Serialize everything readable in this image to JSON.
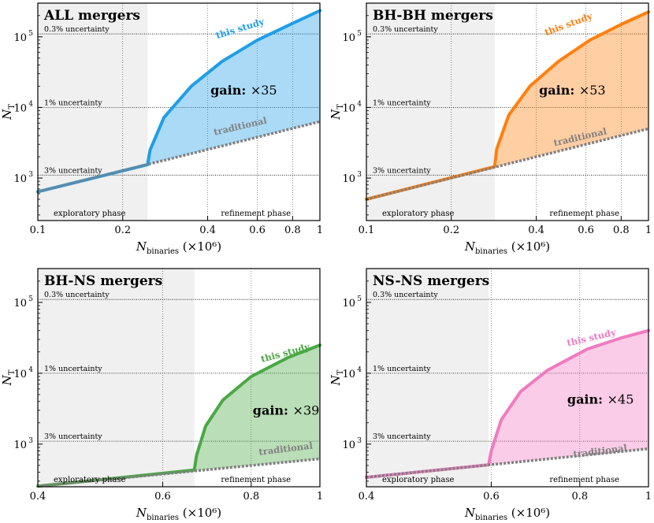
{
  "figure": {
    "xlabel_main": "N",
    "xlabel_sub": "binaries",
    "xlabel_suffix": "(×10⁶)",
    "ylabel_main": "N",
    "ylabel_sub": "T",
    "uncertainty_labels": [
      "0.3% uncertainty",
      "1%   uncertainty",
      "3%   uncertainty"
    ],
    "phase_labels": {
      "exploratory": "exploratory phase",
      "refinement": "refinement phase"
    },
    "curve_labels": {
      "study": "this study",
      "traditional": "traditional"
    },
    "gain_prefix": "gain:"
  },
  "colors": {
    "all": "#1f9ee8",
    "bhbh": "#ff7f0e",
    "bhns": "#4aa844",
    "nsns": "#f17ac0",
    "traditional": "#808080",
    "exploratory_bg": "#f0f0f0"
  },
  "chart_data": [
    {
      "type": "line",
      "title": "ALL mergers",
      "xscale": "log",
      "yscale": "log",
      "xlim": [
        0.1,
        1.0
      ],
      "ylim": [
        250,
        300000
      ],
      "xticks": [
        0.1,
        0.2,
        0.4,
        0.6,
        0.8,
        1.0
      ],
      "xticklabels": [
        "0.1",
        "0.2",
        "0.4",
        "0.6",
        "0.8",
        "1"
      ],
      "yticks": [
        1000,
        10000,
        100000
      ],
      "yticklabels": [
        "10",
        "10",
        "10"
      ],
      "ytickexps": [
        "3",
        "4",
        "5"
      ],
      "uncertainty_levels": [
        110000,
        10000,
        1100
      ],
      "exploratory_end": 0.245,
      "traditional": {
        "x": [
          0.1,
          1.0
        ],
        "y": [
          640,
          6300
        ]
      },
      "study": {
        "x": [
          0.1,
          0.245,
          0.25,
          0.28,
          0.35,
          0.45,
          0.6,
          0.8,
          1.0
        ],
        "y": [
          640,
          1550,
          2500,
          7200,
          20000,
          45000,
          90000,
          155000,
          235000
        ]
      },
      "gain": "×35",
      "color_key": "all"
    },
    {
      "type": "line",
      "title": "BH-BH mergers",
      "xscale": "log",
      "yscale": "log",
      "xlim": [
        0.1,
        1.0
      ],
      "ylim": [
        250,
        300000
      ],
      "xticks": [
        0.1,
        0.2,
        0.4,
        0.6,
        0.8,
        1.0
      ],
      "xticklabels": [
        "0.1",
        "0.2",
        "0.4",
        "0.6",
        "0.8",
        "1"
      ],
      "yticks": [
        1000,
        10000,
        100000
      ],
      "yticklabels": [
        "10",
        "10",
        "10"
      ],
      "ytickexps": [
        "3",
        "4",
        "5"
      ],
      "uncertainty_levels": [
        110000,
        10000,
        1100
      ],
      "exploratory_end": 0.285,
      "traditional": {
        "x": [
          0.1,
          1.0
        ],
        "y": [
          500,
          5000
        ]
      },
      "study": {
        "x": [
          0.1,
          0.285,
          0.29,
          0.32,
          0.38,
          0.48,
          0.62,
          0.8,
          1.0
        ],
        "y": [
          500,
          1450,
          2600,
          7800,
          20000,
          45000,
          90000,
          150000,
          225000
        ]
      },
      "gain": "×53",
      "color_key": "bhbh"
    },
    {
      "type": "line",
      "title": "BH-NS mergers",
      "xscale": "log",
      "yscale": "log",
      "xlim": [
        0.4,
        1.0
      ],
      "ylim": [
        250,
        300000
      ],
      "xticks": [
        0.4,
        0.6,
        0.8,
        1.0
      ],
      "xticklabels": [
        "0.4",
        "0.6",
        "0.8",
        "1"
      ],
      "yticks": [
        1000,
        10000,
        100000
      ],
      "yticklabels": [
        "10",
        "10",
        "10"
      ],
      "ytickexps": [
        "3",
        "4",
        "5"
      ],
      "uncertainty_levels": [
        110000,
        10000,
        1100
      ],
      "exploratory_end": 0.665,
      "traditional": {
        "x": [
          0.4,
          1.0
        ],
        "y": [
          255,
          620
        ]
      },
      "study": {
        "x": [
          0.4,
          0.665,
          0.67,
          0.69,
          0.73,
          0.8,
          0.9,
          1.0
        ],
        "y": [
          255,
          430,
          700,
          1800,
          4200,
          9000,
          16500,
          25000
        ]
      },
      "gain": "×39",
      "color_key": "bhns"
    },
    {
      "type": "line",
      "title": "NS-NS mergers",
      "xscale": "log",
      "yscale": "log",
      "xlim": [
        0.4,
        1.0
      ],
      "ylim": [
        250,
        300000
      ],
      "xticks": [
        0.4,
        0.6,
        0.8,
        1.0
      ],
      "xticklabels": [
        "0.4",
        "0.6",
        "0.8",
        "1"
      ],
      "yticks": [
        1000,
        10000,
        100000
      ],
      "yticklabels": [
        "10",
        "10",
        "10"
      ],
      "ytickexps": [
        "3",
        "4",
        "5"
      ],
      "uncertainty_levels": [
        110000,
        10000,
        1100
      ],
      "exploratory_end": 0.595,
      "traditional": {
        "x": [
          0.4,
          1.0
        ],
        "y": [
          340,
          860
        ]
      },
      "study": {
        "x": [
          0.4,
          0.595,
          0.6,
          0.62,
          0.66,
          0.72,
          0.82,
          0.92,
          1.0
        ],
        "y": [
          340,
          510,
          800,
          2200,
          5500,
          11000,
          22000,
          32000,
          40000
        ]
      },
      "gain": "×45",
      "color_key": "nsns"
    }
  ]
}
